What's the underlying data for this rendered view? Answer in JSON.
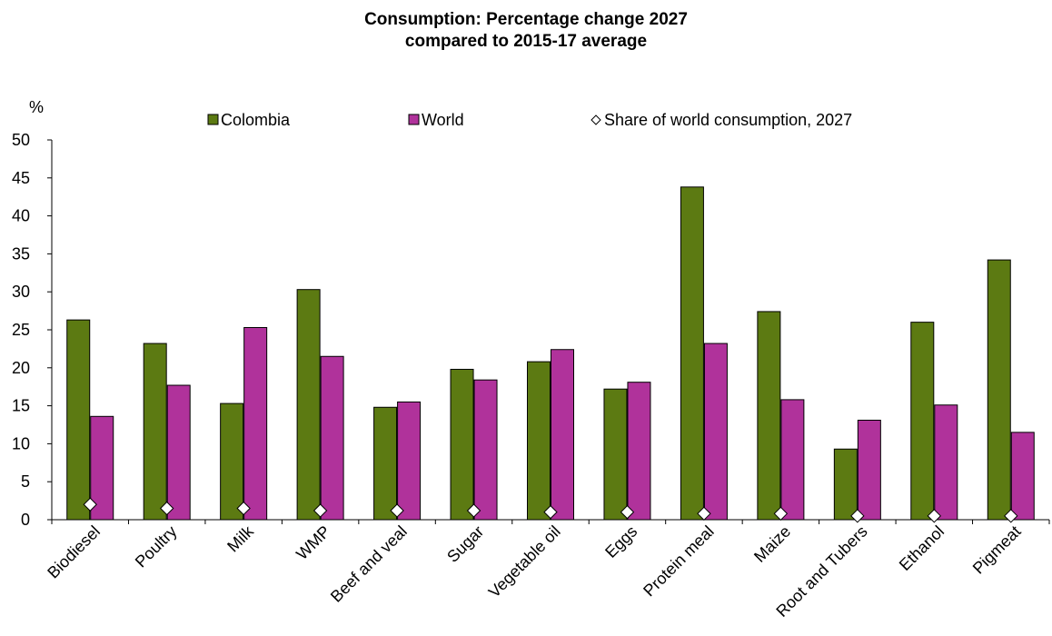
{
  "chart_data": {
    "type": "bar",
    "title_lines": [
      "Consumption: Percentage change 2027",
      "compared to 2015-17 average"
    ],
    "ylabel": "%",
    "ylim": [
      0,
      50
    ],
    "yticks": [
      "0",
      "5",
      "10",
      "15",
      "20",
      "25",
      "30",
      "35",
      "40",
      "45",
      "50"
    ],
    "grid": false,
    "legend_position": "top",
    "categories": [
      "Biodiesel",
      "Poultry",
      "Milk",
      "WMP",
      "Beef and veal",
      "Sugar",
      "Vegetable oil",
      "Eggs",
      "Protein meal",
      "Maize",
      "Root and Tubers",
      "Ethanol",
      "Pigmeat"
    ],
    "series": [
      {
        "name": "Colombia",
        "color": "#5c7a12",
        "marker": "bar",
        "values": [
          26.3,
          23.2,
          15.3,
          30.3,
          14.8,
          19.8,
          20.8,
          17.2,
          43.8,
          27.4,
          9.3,
          26.0,
          34.2
        ]
      },
      {
        "name": "World",
        "color": "#b0329b",
        "marker": "bar",
        "values": [
          13.6,
          17.7,
          25.3,
          21.5,
          15.5,
          18.4,
          22.4,
          18.1,
          23.2,
          15.8,
          13.1,
          15.1,
          11.5
        ]
      },
      {
        "name": "Share of world consumption, 2027",
        "color": "#ffffff",
        "marker": "diamond",
        "values": [
          2.0,
          1.5,
          1.5,
          1.2,
          1.2,
          1.2,
          1.0,
          1.0,
          0.8,
          0.8,
          0.5,
          0.5,
          0.5
        ]
      }
    ]
  }
}
